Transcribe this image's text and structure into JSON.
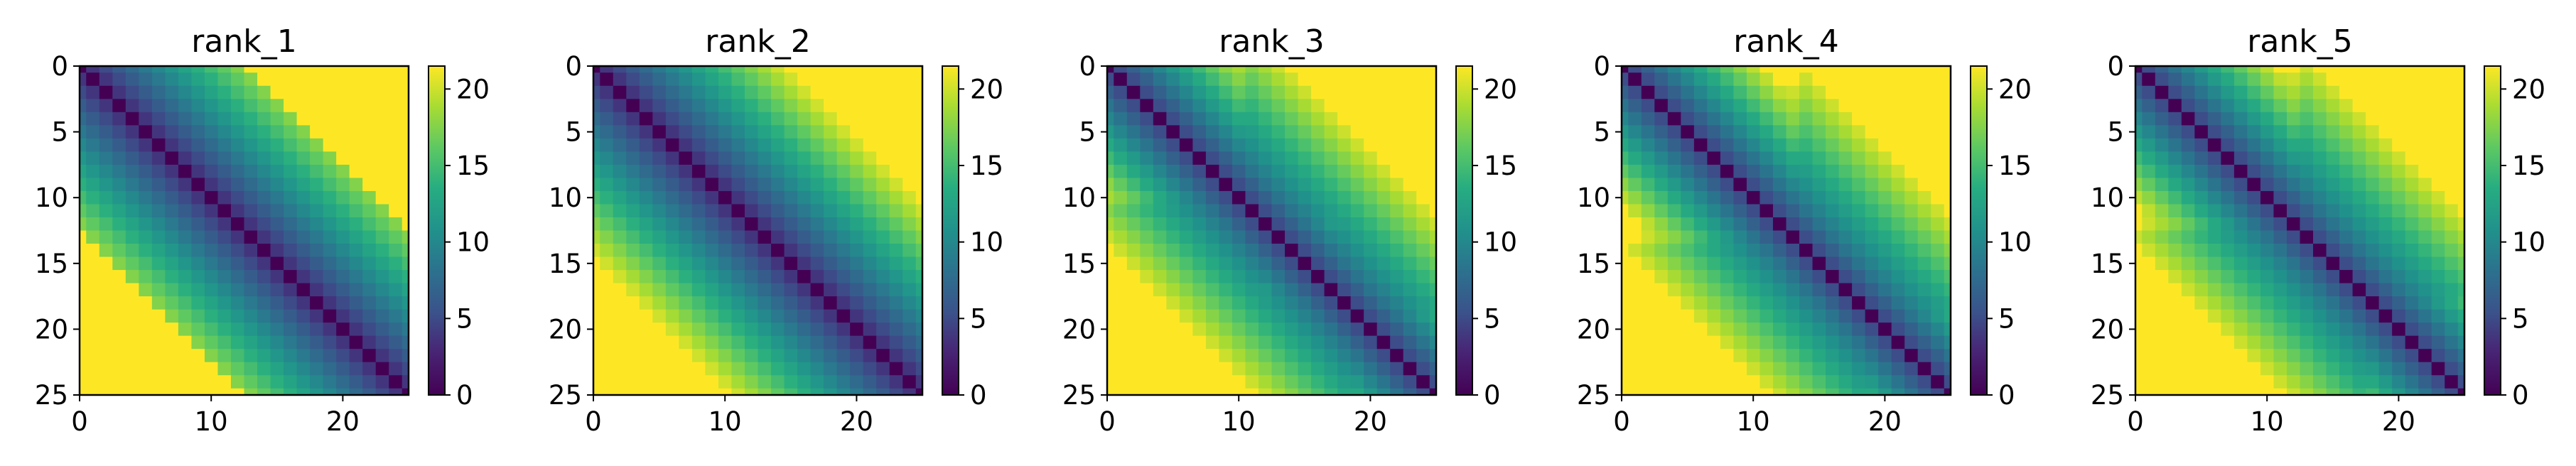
{
  "chart_data": [
    {
      "type": "heatmap",
      "title": "rank_1",
      "xlabel": "",
      "ylabel": "",
      "grid": false,
      "x_ticks": [
        "0",
        "10",
        "20"
      ],
      "y_ticks": [
        "0",
        "5",
        "10",
        "15",
        "20",
        "25"
      ],
      "colorbar_ticks": [
        "0",
        "5",
        "10",
        "15",
        "20"
      ],
      "colormap": "viridis",
      "vmin": 0,
      "vmax": 21.5,
      "xlim": [
        0,
        25
      ],
      "ylim": [
        25,
        0
      ],
      "shape": [
        26,
        26
      ],
      "pattern": "banded",
      "band_width": 12
    },
    {
      "type": "heatmap",
      "title": "rank_2",
      "xlabel": "",
      "ylabel": "",
      "grid": false,
      "x_ticks": [
        "0",
        "10",
        "20"
      ],
      "y_ticks": [
        "0",
        "5",
        "10",
        "15",
        "20",
        "25"
      ],
      "colorbar_ticks": [
        "0",
        "5",
        "10",
        "15",
        "20"
      ],
      "colormap": "viridis",
      "vmin": 0,
      "vmax": 21.5,
      "xlim": [
        0,
        25
      ],
      "ylim": [
        25,
        0
      ],
      "shape": [
        26,
        26
      ],
      "pattern": "banded",
      "band_width": 14
    },
    {
      "type": "heatmap",
      "title": "rank_3",
      "xlabel": "",
      "ylabel": "",
      "grid": false,
      "x_ticks": [
        "0",
        "10",
        "20"
      ],
      "y_ticks": [
        "0",
        "5",
        "10",
        "15",
        "20",
        "25"
      ],
      "colorbar_ticks": [
        "0",
        "5",
        "10",
        "15",
        "20"
      ],
      "colormap": "viridis",
      "vmin": 0,
      "vmax": 21.5,
      "xlim": [
        0,
        25
      ],
      "ylim": [
        25,
        0
      ],
      "shape": [
        26,
        26
      ],
      "pattern": "hub",
      "hubs": [
        11,
        18
      ]
    },
    {
      "type": "heatmap",
      "title": "rank_4",
      "xlabel": "",
      "ylabel": "",
      "grid": false,
      "x_ticks": [
        "0",
        "10",
        "20"
      ],
      "y_ticks": [
        "0",
        "5",
        "10",
        "15",
        "20",
        "25"
      ],
      "colorbar_ticks": [
        "0",
        "5",
        "10",
        "15",
        "20"
      ],
      "colormap": "viridis",
      "vmin": 0,
      "vmax": 21.5,
      "xlim": [
        0,
        25
      ],
      "ylim": [
        25,
        0
      ],
      "shape": [
        26,
        26
      ],
      "pattern": "hub",
      "hubs": [
        14,
        18
      ]
    },
    {
      "type": "heatmap",
      "title": "rank_5",
      "xlabel": "",
      "ylabel": "",
      "grid": false,
      "x_ticks": [
        "0",
        "10",
        "20"
      ],
      "y_ticks": [
        "0",
        "5",
        "10",
        "15",
        "20",
        "25"
      ],
      "colorbar_ticks": [
        "0",
        "5",
        "10",
        "15",
        "20"
      ],
      "colormap": "viridis",
      "vmin": 0,
      "vmax": 21.5,
      "xlim": [
        0,
        25
      ],
      "ylim": [
        25,
        0
      ],
      "shape": [
        26,
        26
      ],
      "pattern": "hub",
      "hubs": [
        13,
        17
      ]
    }
  ]
}
